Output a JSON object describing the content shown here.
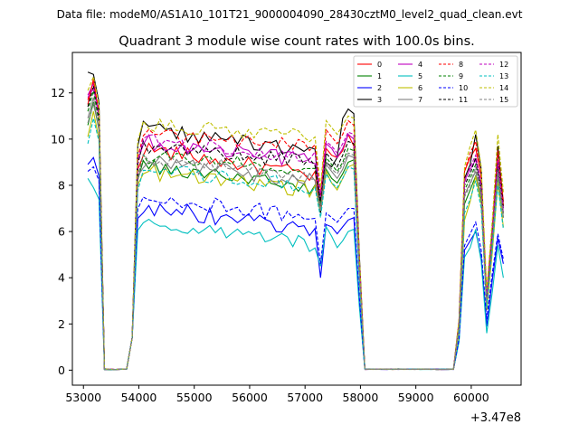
{
  "chart_data": {
    "type": "line",
    "suptitle": "Data file: modeM0/AS1A10_101T21_9000004090_28430cztM0_level2_quad_clean.evt",
    "title": "Quadrant 3 module wise count rates with 100.0s bins.",
    "xlabel": "",
    "ylabel": "",
    "x_offset_label": "+3.47e8",
    "xlim": [
      52800,
      60900
    ],
    "ylim": [
      -0.65,
      13.75
    ],
    "xticks": [
      53000,
      54000,
      55000,
      56000,
      57000,
      58000,
      59000,
      60000
    ],
    "yticks": [
      0,
      2,
      4,
      6,
      8,
      10,
      12
    ],
    "legend_position": "top-right",
    "x_segments": [
      {
        "start": 53080,
        "end": 58080,
        "step": 100
      },
      {
        "start": 58080,
        "end": 60580,
        "step": 100
      }
    ],
    "series": [
      {
        "name": "0",
        "color": "#ff0000",
        "dashed": false,
        "seg1": {
          "early": [
            11.5,
            12.6,
            11.0
          ],
          "level_start": 9.6,
          "level_end": 8.4,
          "dip": 7.0,
          "late": [
            9.6,
            9.3,
            9.2,
            9.5,
            10.2
          ],
          "end": 9.7
        },
        "seg2": {
          "late": [
            8.6,
            9.2,
            9.6,
            8.4,
            3.2,
            6.1,
            9.6,
            7.3
          ]
        }
      },
      {
        "name": "1",
        "color": "#008000",
        "dashed": false,
        "seg1": {
          "early": [
            10.6,
            11.6,
            10.4
          ],
          "level_start": 8.8,
          "level_end": 7.9,
          "dip": 6.8,
          "late": [
            8.7,
            8.3,
            8.1,
            8.5,
            9.0
          ],
          "end": 9.1
        },
        "seg2": {
          "late": [
            7.2,
            7.8,
            8.4,
            7.3,
            2.9,
            5.8,
            8.4,
            6.6
          ]
        }
      },
      {
        "name": "2",
        "color": "#0000ff",
        "dashed": false,
        "seg1": {
          "early": [
            8.9,
            9.2,
            8.4
          ],
          "level_start": 7.1,
          "level_end": 6.0,
          "dip": 4.0,
          "late": [
            6.3,
            6.2,
            5.9,
            6.2,
            6.5
          ],
          "end": 6.6
        },
        "seg2": {
          "late": [
            5.2,
            5.6,
            6.0,
            4.9,
            1.9,
            3.9,
            5.7,
            4.6
          ]
        }
      },
      {
        "name": "3",
        "color": "#000000",
        "dashed": false,
        "seg1": {
          "early": [
            12.9,
            12.8,
            11.6
          ],
          "level_start": 10.5,
          "level_end": 9.4,
          "dip": 6.8,
          "late": [
            9.0,
            8.8,
            9.2,
            10.9,
            11.3
          ],
          "end": 11.1
        },
        "seg2": {
          "late": [
            8.3,
            8.9,
            10.2,
            8.7,
            2.6,
            5.4,
            9.7,
            7.1
          ]
        }
      },
      {
        "name": "4",
        "color": "#bf00bf",
        "dashed": false,
        "seg1": {
          "early": [
            11.9,
            12.4,
            10.9
          ],
          "level_start": 9.9,
          "level_end": 9.0,
          "dip": 7.4,
          "late": [
            9.8,
            9.6,
            9.2,
            9.6,
            10.2
          ],
          "end": 10.0
        },
        "seg2": {
          "late": [
            8.2,
            8.7,
            9.1,
            7.9,
            3.0,
            5.8,
            8.9,
            6.8
          ]
        }
      },
      {
        "name": "5",
        "color": "#00bfbf",
        "dashed": false,
        "seg1": {
          "early": [
            8.3,
            7.9,
            7.4
          ],
          "level_start": 6.4,
          "level_end": 5.4,
          "dip": 4.5,
          "late": [
            6.2,
            5.8,
            5.3,
            5.6,
            6.0
          ],
          "end": 6.1
        },
        "seg2": {
          "late": [
            4.9,
            5.3,
            6.1,
            4.7,
            1.6,
            3.4,
            5.4,
            4.0
          ]
        }
      },
      {
        "name": "6",
        "color": "#bfbf00",
        "dashed": false,
        "seg1": {
          "early": [
            10.1,
            11.2,
            10.0
          ],
          "level_start": 8.6,
          "level_end": 7.8,
          "dip": 6.9,
          "late": [
            8.6,
            8.1,
            7.8,
            8.3,
            8.8
          ],
          "end": 8.9
        },
        "seg2": {
          "late": [
            6.5,
            7.3,
            8.4,
            7.2,
            2.6,
            5.1,
            8.1,
            6.2
          ]
        }
      },
      {
        "name": "7",
        "color": "#808080",
        "dashed": false,
        "seg1": {
          "early": [
            10.9,
            11.8,
            10.4
          ],
          "level_start": 9.0,
          "level_end": 8.2,
          "dip": 6.9,
          "late": [
            8.9,
            8.6,
            8.3,
            8.7,
            9.3
          ],
          "end": 9.2
        },
        "seg2": {
          "late": [
            7.6,
            8.1,
            8.6,
            7.5,
            2.9,
            5.7,
            8.5,
            6.6
          ]
        }
      },
      {
        "name": "8",
        "color": "#ff0000",
        "dashed": true,
        "seg1": {
          "early": [
            11.7,
            12.5,
            11.2
          ],
          "level_start": 10.2,
          "level_end": 9.6,
          "dip": 7.6,
          "late": [
            10.4,
            10.1,
            9.8,
            10.2,
            10.8
          ],
          "end": 10.6
        },
        "seg2": {
          "late": [
            8.6,
            9.4,
            9.9,
            8.3,
            3.3,
            6.2,
            9.5,
            7.1
          ]
        }
      },
      {
        "name": "9",
        "color": "#008000",
        "dashed": true,
        "seg1": {
          "early": [
            11.2,
            12.1,
            10.7
          ],
          "level_start": 9.3,
          "level_end": 8.6,
          "dip": 7.2,
          "late": [
            9.2,
            8.9,
            8.6,
            9.0,
            9.6
          ],
          "end": 9.5
        },
        "seg2": {
          "late": [
            7.8,
            8.3,
            8.9,
            7.7,
            3.0,
            5.9,
            8.7,
            6.8
          ]
        }
      },
      {
        "name": "10",
        "color": "#0000ff",
        "dashed": true,
        "seg1": {
          "early": [
            8.6,
            8.8,
            8.2
          ],
          "level_start": 7.5,
          "level_end": 6.6,
          "dip": 4.6,
          "late": [
            6.8,
            6.6,
            6.4,
            6.7,
            7.0
          ],
          "end": 7.0
        },
        "seg2": {
          "late": [
            5.4,
            5.9,
            6.4,
            5.2,
            2.2,
            4.2,
            5.9,
            4.8
          ]
        }
      },
      {
        "name": "11",
        "color": "#000000",
        "dashed": true,
        "seg1": {
          "early": [
            11.4,
            12.3,
            11.0
          ],
          "level_start": 9.7,
          "level_end": 9.0,
          "dip": 7.3,
          "late": [
            9.4,
            9.1,
            8.8,
            9.3,
            9.9
          ],
          "end": 9.8
        },
        "seg2": {
          "late": [
            8.0,
            8.5,
            9.2,
            7.9,
            3.1,
            6.0,
            9.0,
            7.0
          ]
        }
      },
      {
        "name": "12",
        "color": "#bf00bf",
        "dashed": true,
        "seg1": {
          "early": [
            11.8,
            12.2,
            11.1
          ],
          "level_start": 9.9,
          "level_end": 9.3,
          "dip": 7.5,
          "late": [
            9.9,
            9.7,
            9.4,
            9.8,
            10.3
          ],
          "end": 10.2
        },
        "seg2": {
          "late": [
            8.1,
            8.8,
            9.3,
            8.0,
            3.2,
            6.0,
            9.1,
            6.9
          ]
        }
      },
      {
        "name": "13",
        "color": "#00bfbf",
        "dashed": true,
        "seg1": {
          "early": [
            9.8,
            10.9,
            9.9
          ],
          "level_start": 8.7,
          "level_end": 7.9,
          "dip": 6.6,
          "late": [
            8.5,
            8.1,
            7.9,
            8.3,
            8.8
          ],
          "end": 8.7
        },
        "seg2": {
          "late": [
            6.8,
            7.4,
            8.2,
            7.0,
            2.7,
            5.3,
            8.0,
            6.1
          ]
        }
      },
      {
        "name": "14",
        "color": "#bfbf00",
        "dashed": true,
        "seg1": {
          "early": [
            12.1,
            12.7,
            11.5
          ],
          "level_start": 10.6,
          "level_end": 10.1,
          "dip": 7.9,
          "late": [
            10.8,
            10.5,
            10.2,
            10.6,
            11.0
          ],
          "end": 10.9
        },
        "seg2": {
          "late": [
            8.8,
            9.7,
            10.4,
            8.8,
            3.5,
            6.5,
            10.2,
            7.7
          ]
        }
      },
      {
        "name": "15",
        "color": "#808080",
        "dashed": true,
        "seg1": {
          "early": [
            10.7,
            11.5,
            10.5
          ],
          "level_start": 9.1,
          "level_end": 8.4,
          "dip": 7.0,
          "late": [
            9.0,
            8.7,
            8.5,
            8.9,
            9.4
          ],
          "end": 9.3
        },
        "seg2": {
          "late": [
            7.5,
            8.0,
            8.8,
            7.6,
            2.9,
            5.6,
            8.6,
            6.7
          ]
        }
      }
    ]
  }
}
